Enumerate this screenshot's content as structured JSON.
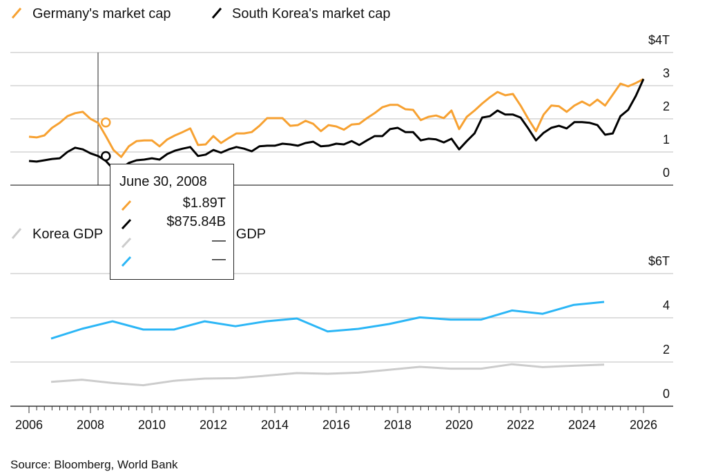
{
  "chart_data": [
    {
      "type": "line",
      "title": "",
      "legend": [
        {
          "name": "Germany's market cap",
          "color": "#f7a131"
        },
        {
          "name": "South Korea's market cap",
          "color": "#000000"
        }
      ],
      "legend_placement": "top-left",
      "y_unit_label": "$4T",
      "yticks": [
        "0",
        "1",
        "2",
        "3",
        "$4T"
      ],
      "ylim": [
        0,
        4
      ],
      "xlim": [
        2006,
        2026.5
      ],
      "x_frequency": "quarterly",
      "x_start": 2006.0,
      "series": [
        {
          "name": "Germany's market cap",
          "color": "#f7a131",
          "values": [
            1.46,
            1.44,
            1.5,
            1.73,
            1.88,
            2.08,
            2.17,
            2.21,
            2.0,
            1.88,
            1.48,
            1.06,
            0.85,
            1.17,
            1.33,
            1.35,
            1.35,
            1.17,
            1.38,
            1.5,
            1.6,
            1.71,
            1.21,
            1.23,
            1.48,
            1.27,
            1.42,
            1.56,
            1.56,
            1.6,
            1.79,
            2.02,
            2.02,
            2.02,
            1.79,
            1.81,
            1.94,
            1.85,
            1.63,
            1.81,
            1.77,
            1.67,
            1.83,
            1.85,
            2.02,
            2.17,
            2.35,
            2.42,
            2.42,
            2.29,
            2.27,
            1.96,
            2.06,
            2.1,
            2.02,
            2.25,
            1.69,
            2.06,
            2.25,
            2.46,
            2.65,
            2.81,
            2.71,
            2.75,
            2.4,
            2.0,
            1.63,
            2.13,
            2.4,
            2.38,
            2.21,
            2.4,
            2.52,
            2.4,
            2.58,
            2.4,
            2.73,
            3.06,
            2.98,
            3.08,
            3.2
          ]
        },
        {
          "name": "South Korea's market cap",
          "color": "#000000",
          "values": [
            0.73,
            0.71,
            0.75,
            0.79,
            0.81,
            1.0,
            1.13,
            1.08,
            0.96,
            0.88,
            0.73,
            0.48,
            0.5,
            0.67,
            0.75,
            0.77,
            0.81,
            0.77,
            0.94,
            1.04,
            1.1,
            1.15,
            0.88,
            0.92,
            1.06,
            0.98,
            1.08,
            1.15,
            1.1,
            1.02,
            1.17,
            1.19,
            1.19,
            1.25,
            1.23,
            1.19,
            1.27,
            1.31,
            1.17,
            1.19,
            1.25,
            1.23,
            1.33,
            1.21,
            1.35,
            1.48,
            1.48,
            1.69,
            1.73,
            1.6,
            1.6,
            1.35,
            1.4,
            1.38,
            1.29,
            1.4,
            1.08,
            1.33,
            1.56,
            2.04,
            2.08,
            2.25,
            2.13,
            2.13,
            2.04,
            1.71,
            1.35,
            1.58,
            1.73,
            1.79,
            1.71,
            1.9,
            1.9,
            1.88,
            1.81,
            1.52,
            1.56,
            2.08,
            2.27,
            2.69,
            3.2
          ]
        }
      ],
      "crosshair": {
        "date": "June 30, 2008",
        "x": 2008.5,
        "values": [
          {
            "series": "Germany's market cap",
            "value": 1.89,
            "label": "$1.89T"
          },
          {
            "series": "South Korea's market cap",
            "value": 0.87584,
            "label": "$875.84B"
          },
          {
            "series": "Korea GDP",
            "label": "—"
          },
          {
            "series": "Germany GDP",
            "label": "—"
          }
        ]
      }
    },
    {
      "type": "line",
      "title": "",
      "legend": [
        {
          "name": "Korea GDP",
          "color": "#cccccc"
        },
        {
          "name": "Germany GDP",
          "color": "#2bb6f6"
        }
      ],
      "legend_placement": "top-left",
      "y_unit_label": "$6T",
      "yticks": [
        "0",
        "2",
        "4",
        "$6T"
      ],
      "ylim": [
        0,
        6
      ],
      "x": [
        2006,
        2007,
        2008,
        2009,
        2010,
        2011,
        2012,
        2013,
        2014,
        2015,
        2016,
        2017,
        2018,
        2019,
        2020,
        2021,
        2022,
        2023,
        2024
      ],
      "series": [
        {
          "name": "Korea GDP",
          "color": "#cccccc",
          "values": [
            1.1,
            1.2,
            1.05,
            0.95,
            1.15,
            1.25,
            1.27,
            1.38,
            1.5,
            1.47,
            1.52,
            1.65,
            1.78,
            1.7,
            1.7,
            1.9,
            1.77,
            1.83,
            1.88
          ]
        },
        {
          "name": "Germany GDP",
          "color": "#2bb6f6",
          "values": [
            3.06,
            3.5,
            3.84,
            3.47,
            3.47,
            3.84,
            3.62,
            3.84,
            3.97,
            3.38,
            3.5,
            3.72,
            4.02,
            3.92,
            3.92,
            4.33,
            4.18,
            4.58,
            4.72
          ]
        }
      ]
    }
  ],
  "x_axis": {
    "tick_labels": [
      "2006",
      "2008",
      "2010",
      "2012",
      "2014",
      "2016",
      "2018",
      "2020",
      "2022",
      "2024",
      "2026"
    ]
  },
  "top_legend": {
    "germany": "Germany's market cap",
    "korea": "South Korea's market cap"
  },
  "bottom_legend": {
    "korea_gdp": "Korea GDP",
    "germany_gdp": "Germany GDP"
  },
  "tooltip": {
    "date": "June 30, 2008",
    "rows": [
      {
        "value": "$1.89T",
        "color": "#f7a131"
      },
      {
        "value": "$875.84B",
        "color": "#000000"
      },
      {
        "value": "—",
        "color": "#cccccc"
      },
      {
        "value": "—",
        "color": "#2bb6f6"
      }
    ]
  },
  "source": "Source: Bloomberg, World Bank"
}
